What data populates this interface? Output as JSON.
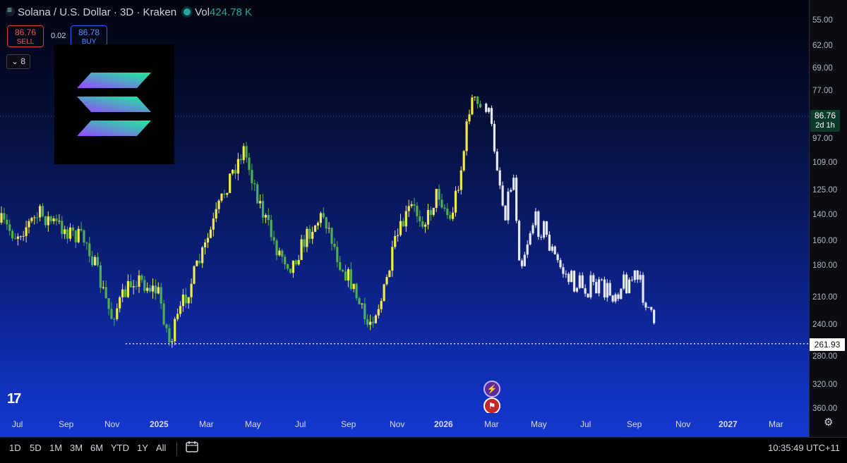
{
  "header": {
    "symbol_title": "Solana / U.S. Dollar · 3D · Kraken",
    "volume_label": "Vol",
    "volume_value": "424.78 K",
    "sell_price": "86.76",
    "sell_label": "SELL",
    "spread": "0.02",
    "buy_price": "86.78",
    "buy_label": "BUY",
    "collapse_count": "8"
  },
  "price_axis": {
    "ticks": [
      "55.00",
      "62.00",
      "69.00",
      "77.00",
      "86.76",
      "97.00",
      "109.00",
      "125.00",
      "140.00",
      "160.00",
      "180.00",
      "210.00",
      "240.00",
      "261.93",
      "280.00",
      "320.00",
      "360.00"
    ],
    "current_price": "86.76",
    "countdown": "2d 1h",
    "line_price": "261.93",
    "inverted": true
  },
  "time_axis": {
    "labels": [
      "Jul",
      "Sep",
      "Nov",
      "2025",
      "Mar",
      "May",
      "Jul",
      "Sep",
      "Nov",
      "2026",
      "Mar",
      "May",
      "Jul",
      "Sep",
      "Nov",
      "2027",
      "Mar"
    ],
    "bold_labels": [
      "2025",
      "2026",
      "2027"
    ]
  },
  "bottom_bar": {
    "periods": [
      "1D",
      "5D",
      "1M",
      "3M",
      "6M",
      "YTD",
      "1Y",
      "All"
    ],
    "clock": "10:35:49 UTC+11"
  },
  "colors": {
    "bull": "#f2e94e",
    "bear": "#4caf50",
    "projection": "#e6e8f2",
    "live": "#26a69a"
  },
  "chart_data": {
    "type": "candlestick",
    "title": "Solana / U.S. Dollar · 3D · Kraken",
    "y_scale": "inverted",
    "ylim": [
      55,
      360
    ],
    "horizontal_line": 261.93,
    "anchors": [
      {
        "x": "2024-06",
        "close": 140
      },
      {
        "x": "2024-07",
        "close": 155
      },
      {
        "x": "2024-08",
        "close": 140
      },
      {
        "x": "2024-09",
        "close": 150
      },
      {
        "x": "2024-10",
        "close": 160
      },
      {
        "x": "2024-11",
        "close": 230
      },
      {
        "x": "2024-12",
        "close": 190
      },
      {
        "x": "2025-01-01",
        "close": 205
      },
      {
        "x": "2025-01-15",
        "close": 262
      },
      {
        "x": "2025-02-01",
        "close": 215
      },
      {
        "x": "2025-03-01",
        "close": 165
      },
      {
        "x": "2025-04-01",
        "close": 118
      },
      {
        "x": "2025-04-20",
        "close": 102
      },
      {
        "x": "2025-05-15",
        "close": 140
      },
      {
        "x": "2025-06-01",
        "close": 165
      },
      {
        "x": "2025-06-20",
        "close": 180
      },
      {
        "x": "2025-07-15",
        "close": 150
      },
      {
        "x": "2025-08-01",
        "close": 140
      },
      {
        "x": "2025-08-20",
        "close": 175
      },
      {
        "x": "2025-09-05",
        "close": 195
      },
      {
        "x": "2025-09-25",
        "close": 240
      },
      {
        "x": "2025-10-15",
        "close": 210
      },
      {
        "x": "2025-11-01",
        "close": 160
      },
      {
        "x": "2025-11-20",
        "close": 135
      },
      {
        "x": "2025-12-10",
        "close": 145
      },
      {
        "x": "2025-12-25",
        "close": 125
      },
      {
        "x": "2026-01-10",
        "close": 145
      },
      {
        "x": "2026-01-25",
        "close": 110
      },
      {
        "x": "2026-02-05",
        "close": 80
      },
      {
        "x": "2026-02-20",
        "close": 85
      }
    ],
    "projection_anchors": [
      {
        "x": "2026-02-25",
        "close": 82
      },
      {
        "x": "2026-03-10",
        "close": 105
      },
      {
        "x": "2026-03-20",
        "close": 140
      },
      {
        "x": "2026-04-01",
        "close": 115
      },
      {
        "x": "2026-04-10",
        "close": 180
      },
      {
        "x": "2026-04-25",
        "close": 145
      },
      {
        "x": "2026-05-10",
        "close": 150
      },
      {
        "x": "2026-05-25",
        "close": 175
      },
      {
        "x": "2026-06-15",
        "close": 195
      },
      {
        "x": "2026-07-15",
        "close": 200
      },
      {
        "x": "2026-08-05",
        "close": 205
      },
      {
        "x": "2026-08-20",
        "close": 195
      },
      {
        "x": "2026-09-05",
        "close": 190
      },
      {
        "x": "2026-09-20",
        "close": 215
      },
      {
        "x": "2026-09-30",
        "close": 255
      }
    ]
  }
}
